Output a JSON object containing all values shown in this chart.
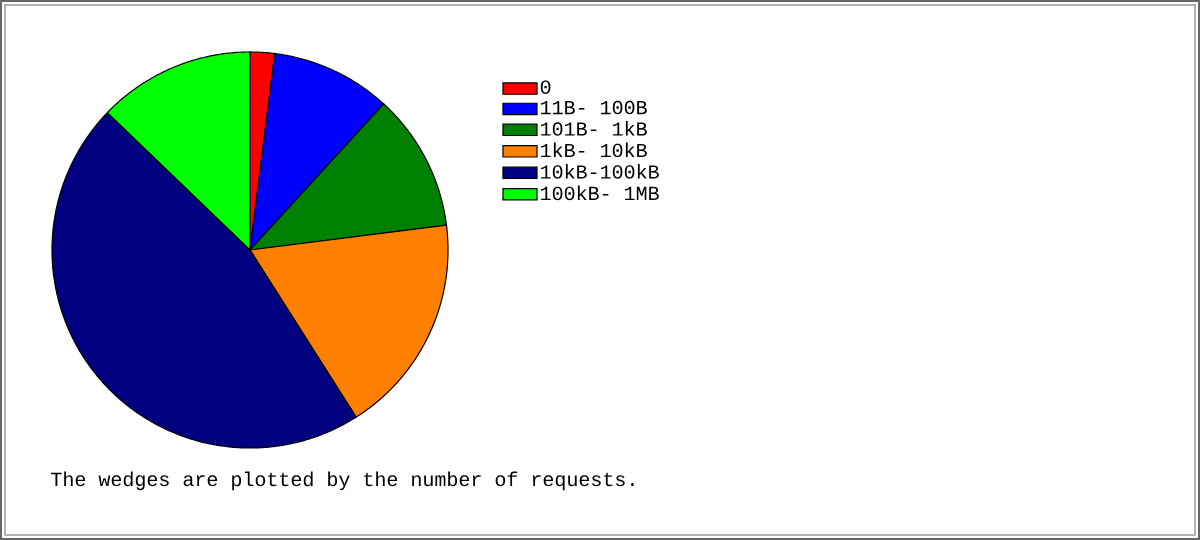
{
  "chart_data": {
    "type": "pie",
    "categories": [
      "0",
      "11B- 100B",
      "101B-  1kB",
      "1kB- 10kB",
      "10kB-100kB",
      "100kB-  1MB"
    ],
    "values": [
      2,
      9.8,
      11.2,
      18,
      46.2,
      12.8
    ],
    "colors": [
      "#ff0000",
      "#0000ff",
      "#008000",
      "#ff8000",
      "#000080",
      "#00ff00"
    ],
    "legend": "right",
    "annotations": [
      "The wedges are plotted by the number of requests."
    ]
  }
}
